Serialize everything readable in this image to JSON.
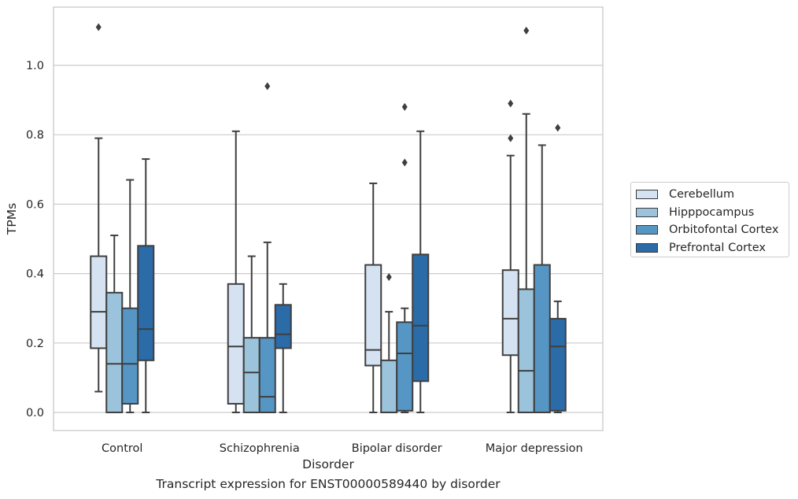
{
  "chart_data": {
    "type": "box",
    "title": "",
    "xlabel": "Disorder",
    "ylabel": "TPMs",
    "ylim": [
      -0.054,
      1.17
    ],
    "yticks": [
      0.0,
      0.2,
      0.4,
      0.6,
      0.8,
      1.0
    ],
    "ytick_labels": [
      "0.0",
      "0.2",
      "0.4",
      "0.6",
      "0.8",
      "1.0"
    ],
    "categories": [
      "Control",
      "Schizophrenia",
      "Bipolar disorder",
      "Major depression"
    ],
    "grid": "horizontal",
    "legend_position": "right",
    "series": [
      {
        "name": "Cerebellum",
        "color": "#d4e2f2",
        "boxes": [
          {
            "whislo": 0.06,
            "q1": 0.185,
            "med": 0.29,
            "q3": 0.45,
            "whishi": 0.79,
            "fliers": [
              1.11
            ]
          },
          {
            "whislo": 0.0,
            "q1": 0.025,
            "med": 0.19,
            "q3": 0.37,
            "whishi": 0.81,
            "fliers": []
          },
          {
            "whislo": 0.0,
            "q1": 0.135,
            "med": 0.18,
            "q3": 0.425,
            "whishi": 0.66,
            "fliers": []
          },
          {
            "whislo": 0.0,
            "q1": 0.165,
            "med": 0.27,
            "q3": 0.41,
            "whishi": 0.74,
            "fliers": [
              0.79,
              0.89
            ]
          }
        ]
      },
      {
        "name": "Hipppocampus",
        "color": "#9bc4dc",
        "boxes": [
          {
            "whislo": 0.0,
            "q1": 0.0,
            "med": 0.14,
            "q3": 0.345,
            "whishi": 0.51,
            "fliers": []
          },
          {
            "whislo": 0.0,
            "q1": 0.0,
            "med": 0.115,
            "q3": 0.215,
            "whishi": 0.45,
            "fliers": []
          },
          {
            "whislo": 0.0,
            "q1": 0.0,
            "med": 0.0,
            "q3": 0.15,
            "whishi": 0.29,
            "fliers": [
              0.39
            ]
          },
          {
            "whislo": 0.0,
            "q1": 0.0,
            "med": 0.12,
            "q3": 0.355,
            "whishi": 0.86,
            "fliers": [
              1.1
            ]
          }
        ]
      },
      {
        "name": "Orbitofontal Cortex",
        "color": "#5696c5",
        "boxes": [
          {
            "whislo": 0.0,
            "q1": 0.025,
            "med": 0.14,
            "q3": 0.3,
            "whishi": 0.67,
            "fliers": []
          },
          {
            "whislo": 0.0,
            "q1": 0.0,
            "med": 0.045,
            "q3": 0.215,
            "whishi": 0.49,
            "fliers": [
              0.94
            ]
          },
          {
            "whislo": 0.0,
            "q1": 0.005,
            "med": 0.17,
            "q3": 0.26,
            "whishi": 0.3,
            "fliers": [
              0.72,
              0.88
            ]
          },
          {
            "whislo": 0.0,
            "q1": 0.0,
            "med": 0.0,
            "q3": 0.425,
            "whishi": 0.77,
            "fliers": []
          }
        ]
      },
      {
        "name": "Prefrontal Cortex",
        "color": "#2a6ba8",
        "boxes": [
          {
            "whislo": 0.0,
            "q1": 0.15,
            "med": 0.24,
            "q3": 0.48,
            "whishi": 0.73,
            "fliers": []
          },
          {
            "whislo": 0.0,
            "q1": 0.185,
            "med": 0.225,
            "q3": 0.31,
            "whishi": 0.37,
            "fliers": []
          },
          {
            "whislo": 0.0,
            "q1": 0.09,
            "med": 0.25,
            "q3": 0.455,
            "whishi": 0.81,
            "fliers": []
          },
          {
            "whislo": 0.0,
            "q1": 0.005,
            "med": 0.19,
            "q3": 0.27,
            "whishi": 0.32,
            "fliers": [
              0.82
            ]
          }
        ]
      }
    ]
  },
  "caption": "Transcript expression for ENST00000589440 by disorder"
}
